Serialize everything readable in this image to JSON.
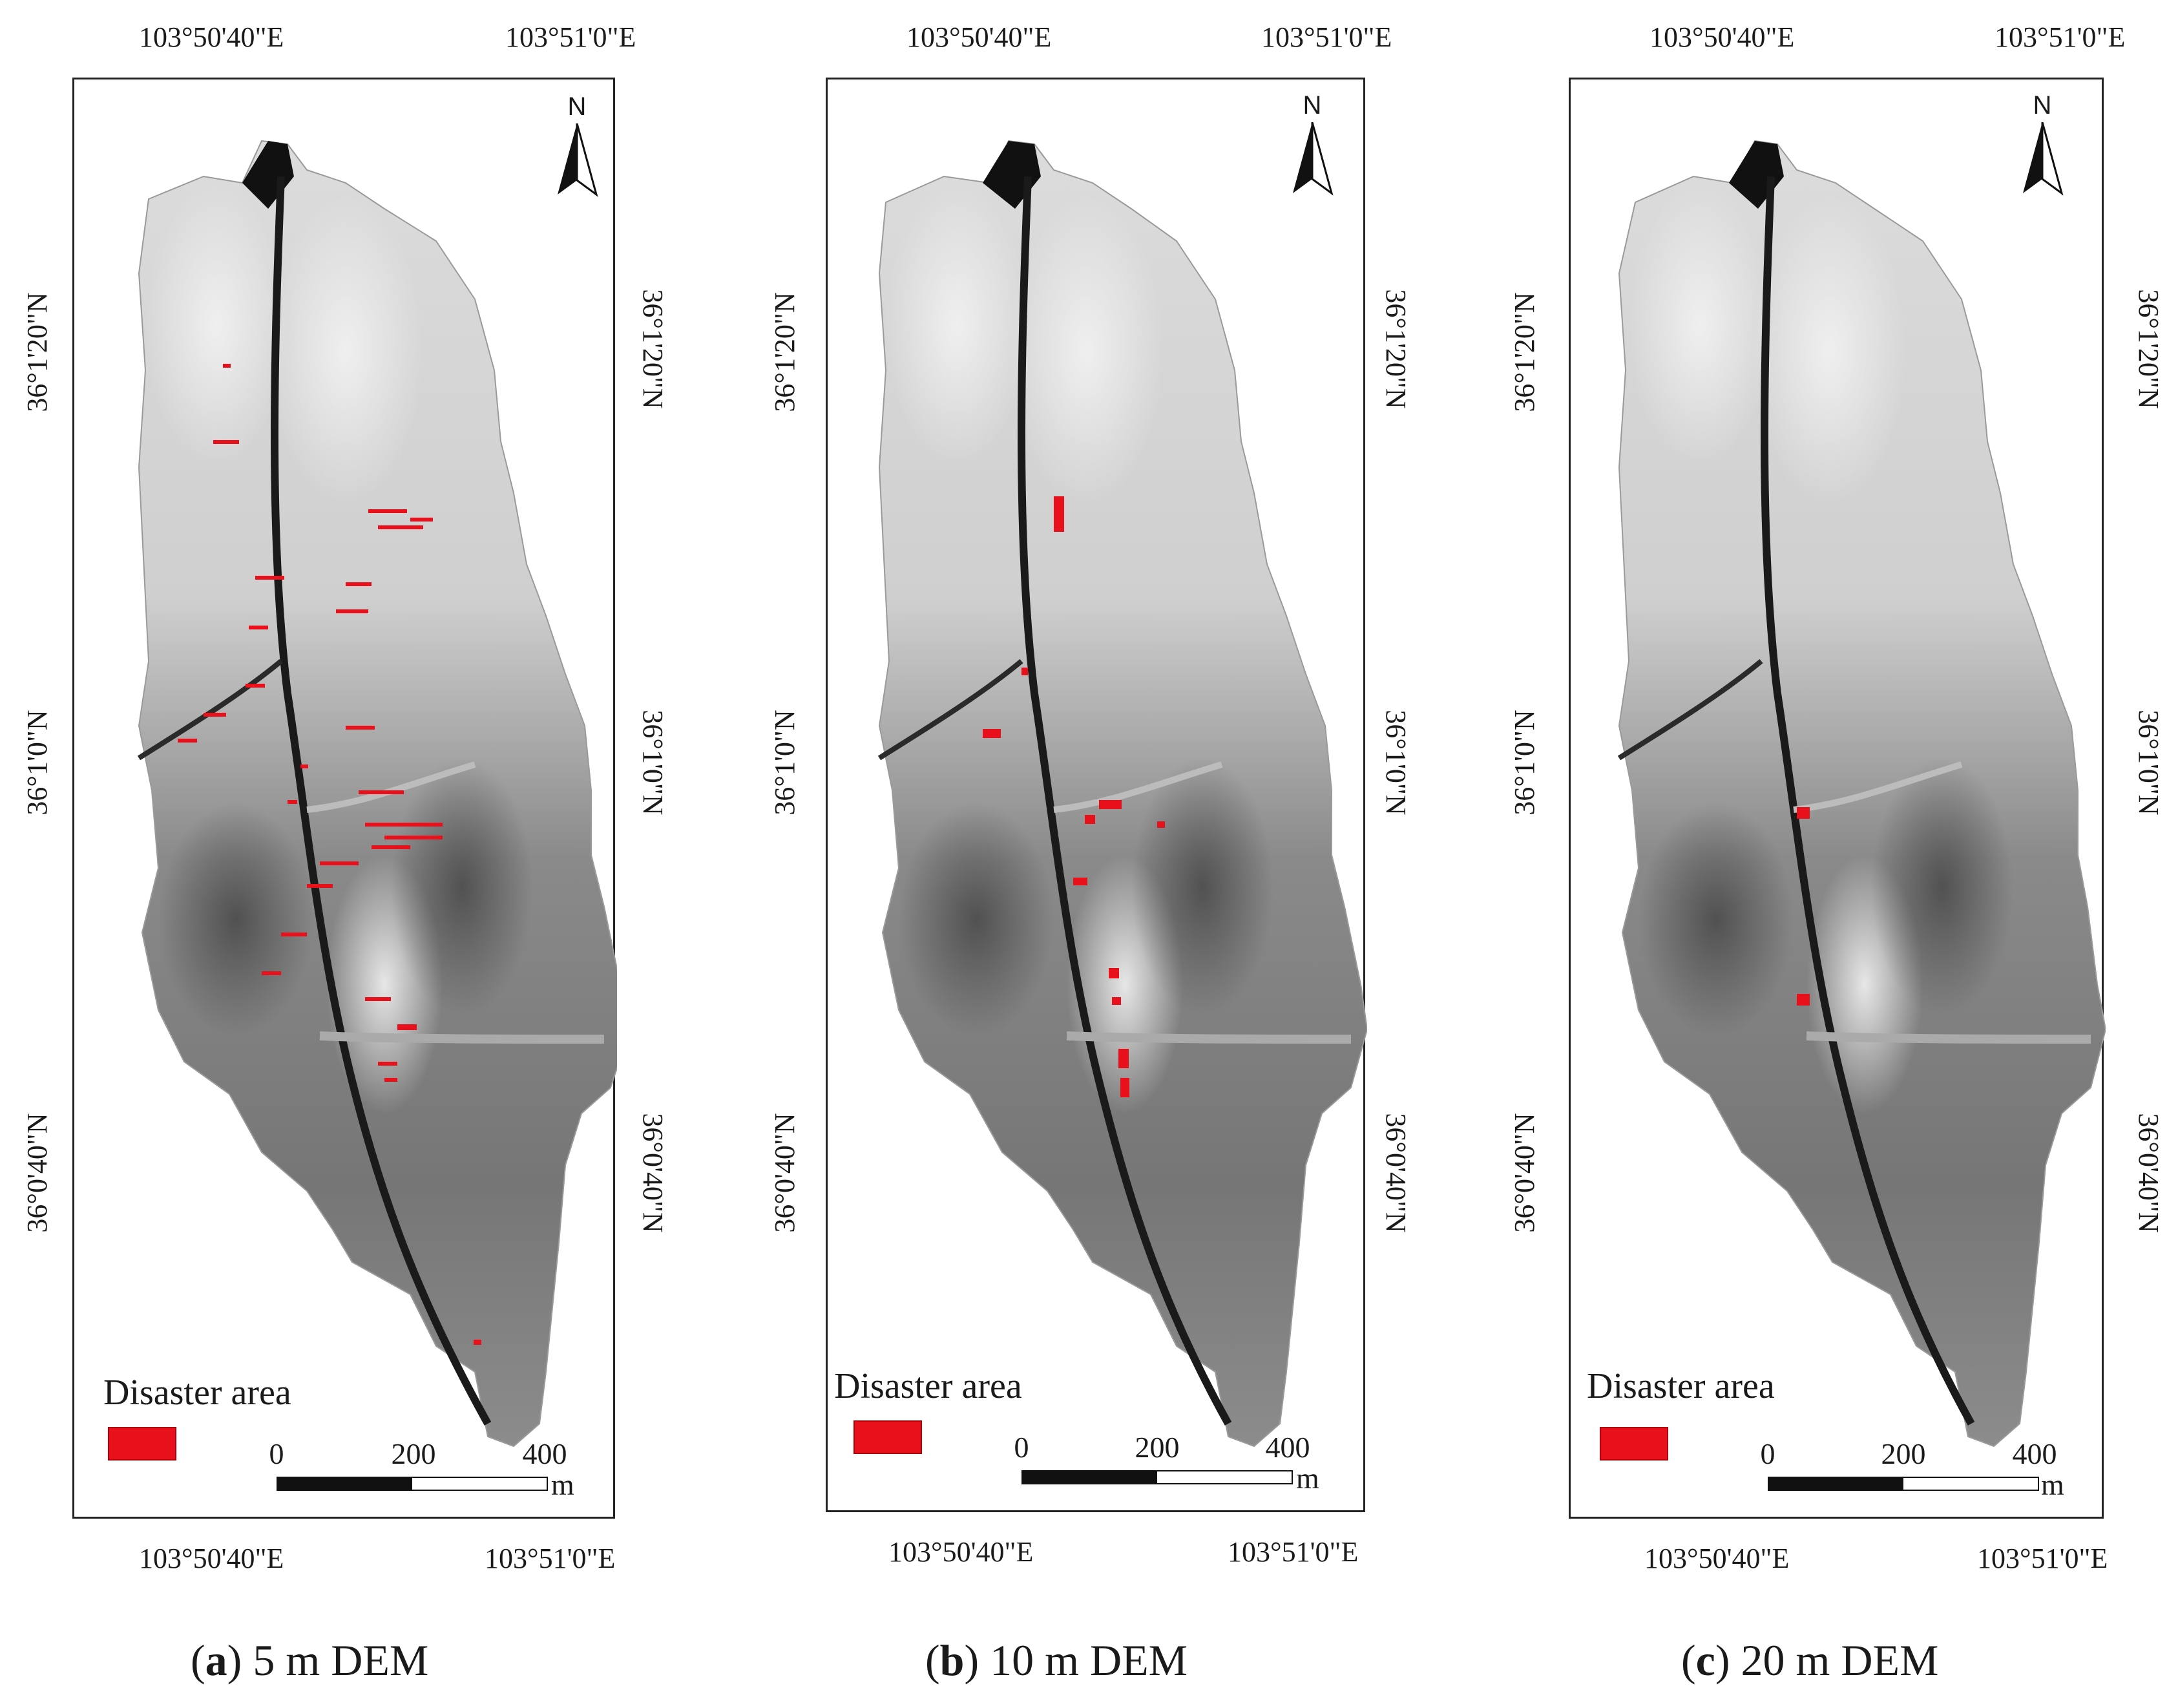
{
  "panels": [
    {
      "id": "a",
      "top_labels": [
        "103°50'40\"E",
        "103°51'0\"E"
      ],
      "bottom_labels": [
        "103°50'40\"E",
        "103°51'0\"E"
      ],
      "left_labels": [
        "36°1'20\"N",
        "36°1'0\"N",
        "36°0'40\"N"
      ],
      "right_labels": [
        "36°1'20\"N",
        "36°1'0\"N",
        "36°0'40\"N"
      ],
      "north_label": "N",
      "legend_title": "Disaster area",
      "scale_labels": [
        "0",
        "200",
        "400"
      ],
      "scale_unit": "m",
      "caption_letter": "a",
      "caption_rest": " 5 m DEM"
    },
    {
      "id": "b",
      "top_labels": [
        "103°50'40\"E",
        "103°51'0\"E"
      ],
      "bottom_labels": [
        "103°50'40\"E",
        "103°51'0\"E"
      ],
      "left_labels": [
        "36°1'20\"N",
        "36°1'0\"N",
        "36°0'40\"N"
      ],
      "right_labels": [
        "36°1'20\"N",
        "36°1'0\"N",
        "36°0'40\"N"
      ],
      "north_label": "N",
      "legend_title": "Disaster area",
      "scale_labels": [
        "0",
        "200",
        "400"
      ],
      "scale_unit": "m",
      "caption_letter": "b",
      "caption_rest": " 10 m DEM"
    },
    {
      "id": "c",
      "top_labels": [
        "103°50'40\"E",
        "103°51'0\"E"
      ],
      "bottom_labels": [
        "103°50'40\"E",
        "103°51'0\"E"
      ],
      "left_labels": [
        "36°1'20\"N",
        "36°1'0\"N",
        "36°0'40\"N"
      ],
      "right_labels": [
        "36°1'20\"N",
        "36°1'0\"N",
        "36°0'40\"N"
      ],
      "north_label": "N",
      "legend_title": "Disaster area",
      "scale_labels": [
        "0",
        "200",
        "400"
      ],
      "scale_unit": "m",
      "caption_letter": "c",
      "caption_rest": " 20 m DEM"
    }
  ],
  "colors": {
    "disaster": "#e8101a",
    "terrain_light": "#e6e6e6",
    "terrain_dark": "#5a5a5a",
    "channel": "#1a1a1a"
  }
}
